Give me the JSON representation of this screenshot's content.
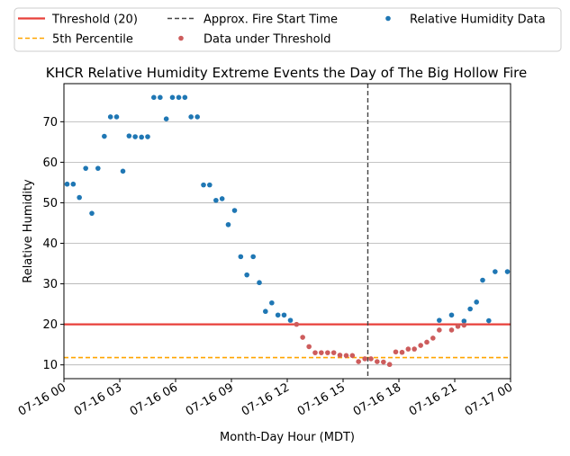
{
  "chart_data": {
    "type": "scatter",
    "title": "KHCR Relative Humidity Extreme Events the Day of The Big Hollow Fire",
    "xlabel": "Month-Day Hour (MDT)",
    "ylabel": "Relative Humidity",
    "x_unit": "hours since 07-16 00:00 MDT",
    "xlim": [
      0,
      24
    ],
    "ylim": [
      6.6,
      79.4
    ],
    "x_ticks": [
      {
        "value": 0,
        "label": "07-16 00"
      },
      {
        "value": 3,
        "label": "07-16 03"
      },
      {
        "value": 6,
        "label": "07-16 06"
      },
      {
        "value": 9,
        "label": "07-16 09"
      },
      {
        "value": 12,
        "label": "07-16 12"
      },
      {
        "value": 15,
        "label": "07-16 15"
      },
      {
        "value": 18,
        "label": "07-16 18"
      },
      {
        "value": 21,
        "label": "07-16 21"
      },
      {
        "value": 24,
        "label": "07-17 00"
      }
    ],
    "y_ticks": [
      {
        "value": 10,
        "label": "10"
      },
      {
        "value": 20,
        "label": "20"
      },
      {
        "value": 30,
        "label": "30"
      },
      {
        "value": 40,
        "label": "40"
      },
      {
        "value": 50,
        "label": "50"
      },
      {
        "value": 60,
        "label": "60"
      },
      {
        "value": 70,
        "label": "70"
      }
    ],
    "grid": "horizontal",
    "legend_position": "above plot",
    "threshold": {
      "name": "Threshold (20)",
      "value": 20,
      "color": "#e8403a"
    },
    "percentile": {
      "name": "5th Percentile",
      "value": 11.8,
      "color": "#ffa500"
    },
    "fire_start": {
      "name": "Approx. Fire Start Time",
      "x": 16.33,
      "color": "#444444"
    },
    "series": [
      {
        "name": "Relative Humidity Data",
        "color": "#1f77b4",
        "points": [
          [
            0.17,
            54.6
          ],
          [
            0.5,
            54.6
          ],
          [
            0.83,
            51.3
          ],
          [
            1.17,
            58.5
          ],
          [
            1.5,
            47.4
          ],
          [
            1.83,
            58.5
          ],
          [
            2.17,
            66.4
          ],
          [
            2.5,
            71.2
          ],
          [
            2.83,
            71.2
          ],
          [
            3.17,
            57.8
          ],
          [
            3.5,
            66.5
          ],
          [
            3.83,
            66.3
          ],
          [
            4.17,
            66.2
          ],
          [
            4.5,
            66.3
          ],
          [
            4.83,
            76.0
          ],
          [
            5.17,
            76.0
          ],
          [
            5.5,
            70.7
          ],
          [
            5.83,
            76.0
          ],
          [
            6.17,
            76.0
          ],
          [
            6.5,
            76.0
          ],
          [
            6.83,
            71.2
          ],
          [
            7.17,
            71.2
          ],
          [
            7.5,
            54.4
          ],
          [
            7.83,
            54.4
          ],
          [
            8.17,
            50.6
          ],
          [
            8.5,
            51.0
          ],
          [
            8.83,
            44.6
          ],
          [
            9.17,
            48.1
          ],
          [
            9.5,
            36.7
          ],
          [
            9.83,
            32.2
          ],
          [
            10.17,
            36.7
          ],
          [
            10.5,
            30.3
          ],
          [
            10.83,
            23.2
          ],
          [
            11.17,
            25.3
          ],
          [
            11.5,
            22.3
          ],
          [
            11.83,
            22.3
          ],
          [
            12.17,
            21.0
          ],
          [
            20.17,
            21.0
          ],
          [
            20.83,
            22.3
          ],
          [
            21.5,
            20.8
          ],
          [
            21.83,
            23.8
          ],
          [
            22.17,
            25.5
          ],
          [
            22.5,
            30.9
          ],
          [
            22.83,
            20.9
          ],
          [
            23.17,
            33.0
          ],
          [
            23.83,
            33.0
          ]
        ]
      },
      {
        "name": "Data under Threshold",
        "color": "#cd5c5c",
        "points": [
          [
            12.5,
            20.0
          ],
          [
            12.83,
            16.8
          ],
          [
            13.17,
            14.5
          ],
          [
            13.5,
            13.0
          ],
          [
            13.83,
            13.0
          ],
          [
            14.17,
            13.0
          ],
          [
            14.5,
            13.0
          ],
          [
            14.83,
            12.4
          ],
          [
            15.17,
            12.3
          ],
          [
            15.5,
            12.3
          ],
          [
            15.83,
            10.8
          ],
          [
            16.17,
            11.5
          ],
          [
            16.5,
            11.5
          ],
          [
            16.83,
            10.8
          ],
          [
            17.17,
            10.7
          ],
          [
            17.5,
            10.1
          ],
          [
            17.83,
            13.2
          ],
          [
            18.17,
            13.1
          ],
          [
            18.5,
            13.9
          ],
          [
            18.83,
            13.9
          ],
          [
            19.17,
            14.8
          ],
          [
            19.5,
            15.6
          ],
          [
            19.83,
            16.6
          ],
          [
            20.17,
            18.6
          ],
          [
            20.83,
            18.6
          ],
          [
            21.17,
            19.5
          ],
          [
            21.5,
            19.8
          ]
        ]
      }
    ]
  }
}
